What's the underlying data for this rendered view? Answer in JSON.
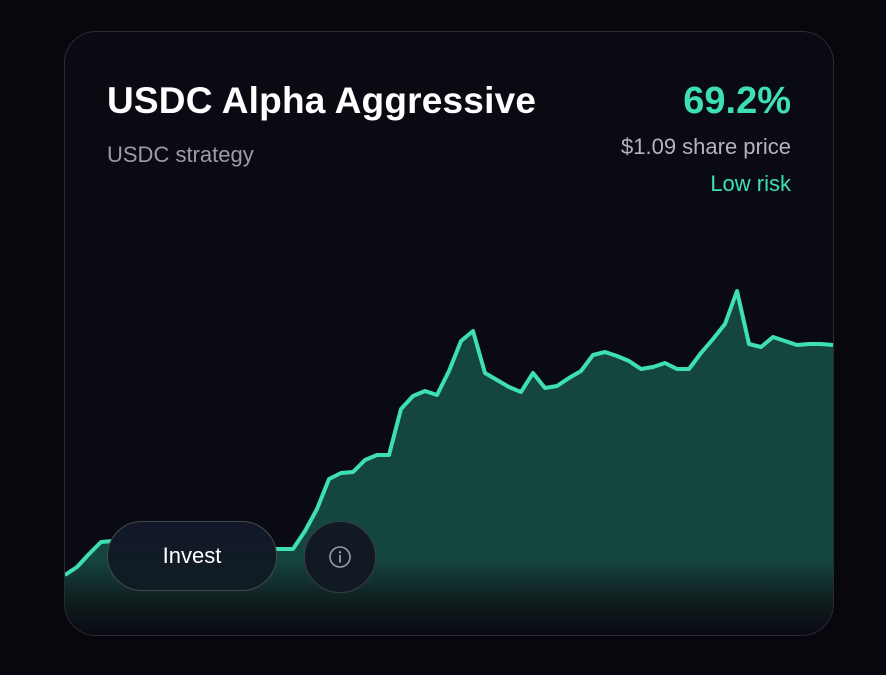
{
  "card": {
    "title": "USDC Alpha Aggressive",
    "subtitle": "USDC strategy",
    "apy": "69.2%",
    "share_price": "$1.09 share price",
    "risk": "Low risk",
    "invest_label": "Invest",
    "info_icon": "info-circle-icon"
  },
  "colors": {
    "accent": "#3ee0b1",
    "background": "#0a0a12",
    "area_fill": "#15453f"
  },
  "chart_data": {
    "type": "area",
    "title": "",
    "xlabel": "",
    "ylabel": "",
    "axes_visible": false,
    "grid": false,
    "values": [
      26,
      34,
      47,
      59,
      60,
      57,
      54,
      52,
      52,
      52,
      52,
      52,
      52,
      52,
      52,
      52,
      52,
      52,
      52,
      52,
      70,
      92,
      122,
      128,
      129,
      141,
      146,
      146,
      192,
      205,
      210,
      206,
      230,
      260,
      270,
      228,
      221,
      214,
      209,
      228,
      213,
      215,
      223,
      230,
      246,
      249,
      245,
      240,
      232,
      234,
      238,
      232,
      232,
      248,
      262,
      277,
      310,
      257,
      254,
      264,
      260,
      256,
      257,
      257,
      256
    ]
  }
}
